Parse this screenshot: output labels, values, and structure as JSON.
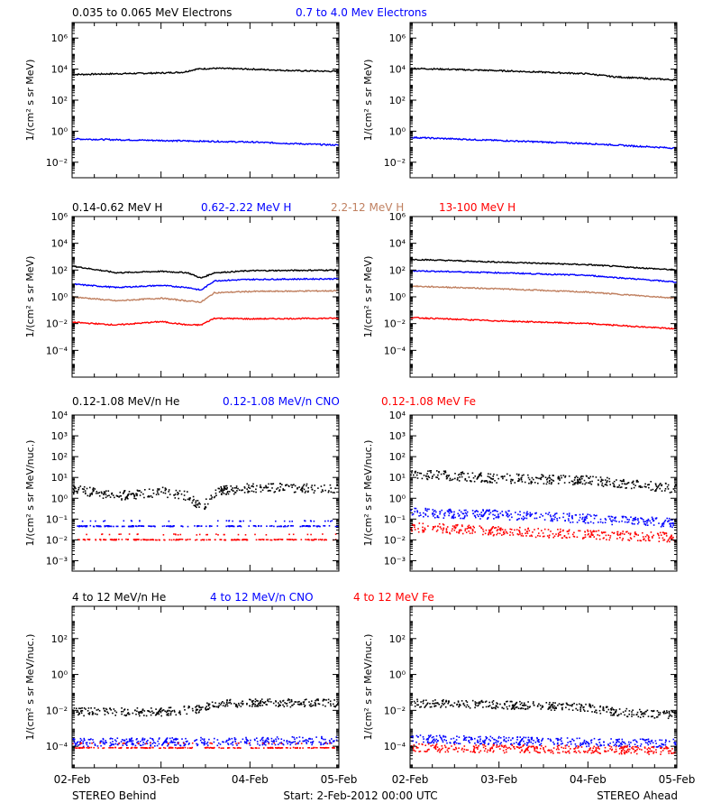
{
  "footer": {
    "left": "STEREO Behind",
    "center": "Start:  2-Feb-2012 00:00 UTC",
    "right": "STEREO Ahead"
  },
  "x_ticks": [
    "02-Feb",
    "03-Feb",
    "04-Feb",
    "05-Feb"
  ],
  "rows": [
    {
      "ylabel": "1/(cm² s sr MeV)",
      "legend": [
        {
          "text": "0.035 to 0.065 MeV Electrons",
          "color": "#000000"
        },
        {
          "text": "0.7 to 4.0 Mev Electrons",
          "color": "#0000ff"
        }
      ],
      "ylog": [
        -3,
        7
      ],
      "tick_exps": [
        -2,
        0,
        2,
        4,
        6
      ]
    },
    {
      "ylabel": "1/(cm² s sr MeV)",
      "legend": [
        {
          "text": "0.14-0.62 MeV H",
          "color": "#000000"
        },
        {
          "text": "0.62-2.22 MeV H",
          "color": "#0000ff"
        },
        {
          "text": "2.2-12 MeV H",
          "color": "#c08060"
        },
        {
          "text": "13-100 MeV H",
          "color": "#ff0000"
        }
      ],
      "ylog": [
        -6,
        6
      ],
      "tick_exps": [
        -4,
        -2,
        0,
        2,
        4,
        6
      ]
    },
    {
      "ylabel": "1/(cm² s sr MeV/nuc.)",
      "legend": [
        {
          "text": "0.12-1.08 MeV/n He",
          "color": "#000000"
        },
        {
          "text": "0.12-1.08 MeV/n CNO",
          "color": "#0000ff"
        },
        {
          "text": "0.12-1.08 MeV Fe",
          "color": "#ff0000"
        }
      ],
      "ylog": [
        -3.5,
        4
      ],
      "tick_exps": [
        -3,
        -2,
        -1,
        0,
        1,
        2,
        3,
        4
      ]
    },
    {
      "ylabel": "1/(cm² s sr MeV/nuc.)",
      "legend": [
        {
          "text": "4 to 12 MeV/n He",
          "color": "#000000"
        },
        {
          "text": "4 to 12 MeV/n CNO",
          "color": "#0000ff"
        },
        {
          "text": "4 to 12 MeV Fe",
          "color": "#ff0000"
        }
      ],
      "ylog": [
        -5.2,
        3.8
      ],
      "tick_exps": [
        -4,
        -2,
        0,
        2
      ]
    }
  ],
  "chart_data": [
    {
      "type": "line",
      "panel": "Behind electrons",
      "ylog": [
        -3,
        7
      ],
      "yscale": "log",
      "series": [
        {
          "name": "0.035 to 0.065 MeV Electrons",
          "color": "#000000",
          "x": [
            0,
            0.5,
            1.0,
            1.25,
            1.4,
            1.6,
            2,
            2.5,
            3
          ],
          "y": [
            3.65,
            3.7,
            3.75,
            3.8,
            4.0,
            4.05,
            4.0,
            3.9,
            3.85
          ]
        },
        {
          "name": "0.7 to 4.0 Mev Electrons",
          "color": "#0000ff",
          "x": [
            0,
            1,
            2,
            3
          ],
          "y": [
            -0.5,
            -0.6,
            -0.7,
            -0.9
          ]
        }
      ]
    },
    {
      "type": "line",
      "panel": "Ahead electrons",
      "ylog": [
        -3,
        7
      ],
      "yscale": "log",
      "series": [
        {
          "name": "0.035 to 0.065 MeV Electrons",
          "color": "#000000",
          "x": [
            0,
            1,
            2,
            2.3,
            3
          ],
          "y": [
            4.05,
            3.9,
            3.7,
            3.5,
            3.3
          ]
        },
        {
          "name": "0.7 to 4.0 Mev Electrons",
          "color": "#0000ff",
          "x": [
            0,
            1,
            2,
            3
          ],
          "y": [
            -0.4,
            -0.6,
            -0.8,
            -1.1
          ]
        }
      ]
    },
    {
      "type": "line",
      "panel": "Behind H",
      "ylog": [
        -6,
        6
      ],
      "yscale": "log",
      "series": [
        {
          "name": "0.14-0.62 MeV H",
          "color": "#000000",
          "x": [
            0,
            0.5,
            1.0,
            1.3,
            1.45,
            1.6,
            2,
            3
          ],
          "y": [
            2.3,
            1.8,
            1.9,
            1.8,
            1.4,
            1.8,
            1.95,
            2.0
          ]
        },
        {
          "name": "0.62-2.22 MeV H",
          "color": "#0000ff",
          "x": [
            0,
            0.5,
            1.0,
            1.3,
            1.45,
            1.6,
            2,
            3
          ],
          "y": [
            0.95,
            0.7,
            0.85,
            0.7,
            0.5,
            1.2,
            1.3,
            1.35
          ]
        },
        {
          "name": "2.2-12 MeV H",
          "color": "#c08060",
          "x": [
            0,
            0.5,
            1.0,
            1.3,
            1.45,
            1.6,
            2,
            3
          ],
          "y": [
            0.0,
            -0.3,
            -0.1,
            -0.3,
            -0.4,
            0.3,
            0.4,
            0.45
          ]
        },
        {
          "name": "13-100 MeV H",
          "color": "#ff0000",
          "x": [
            0,
            0.5,
            1.0,
            1.3,
            1.45,
            1.6,
            2,
            3
          ],
          "y": [
            -1.9,
            -2.1,
            -1.85,
            -2.1,
            -2.1,
            -1.6,
            -1.65,
            -1.6
          ]
        }
      ]
    },
    {
      "type": "line",
      "panel": "Ahead H",
      "ylog": [
        -6,
        6
      ],
      "yscale": "log",
      "series": [
        {
          "name": "0.14-0.62 MeV H",
          "color": "#000000",
          "x": [
            0,
            1,
            2,
            3
          ],
          "y": [
            2.8,
            2.6,
            2.4,
            2.0
          ]
        },
        {
          "name": "0.62-2.22 MeV H",
          "color": "#0000ff",
          "x": [
            0,
            1,
            2,
            3
          ],
          "y": [
            1.95,
            1.8,
            1.6,
            1.1
          ]
        },
        {
          "name": "2.2-12 MeV H",
          "color": "#c08060",
          "x": [
            0,
            1,
            2,
            3
          ],
          "y": [
            0.8,
            0.6,
            0.35,
            -0.1
          ]
        },
        {
          "name": "13-100 MeV H",
          "color": "#ff0000",
          "x": [
            0,
            1,
            2,
            3
          ],
          "y": [
            -1.55,
            -1.8,
            -2.0,
            -2.4
          ]
        }
      ]
    },
    {
      "type": "scatter",
      "panel": "Behind low-energy ions",
      "ylog": [
        -3.5,
        4
      ],
      "yscale": "log",
      "series": [
        {
          "name": "0.12-1.08 MeV/n He",
          "color": "#000000",
          "x": [
            0,
            0.5,
            1.0,
            1.3,
            1.45,
            1.6,
            2,
            3
          ],
          "y": [
            0.4,
            0.1,
            0.3,
            0.1,
            -0.5,
            0.3,
            0.5,
            0.45
          ]
        },
        {
          "name": "0.12-1.08 MeV/n CNO",
          "color": "#0000ff",
          "x": [
            0,
            3
          ],
          "y": [
            -1.35,
            -1.35
          ]
        },
        {
          "name": "0.12-1.08 MeV Fe",
          "color": "#ff0000",
          "x": [
            0,
            3
          ],
          "y": [
            -2.0,
            -2.0
          ]
        }
      ]
    },
    {
      "type": "scatter",
      "panel": "Ahead low-energy ions",
      "ylog": [
        -3.5,
        4
      ],
      "yscale": "log",
      "series": [
        {
          "name": "0.12-1.08 MeV/n He",
          "color": "#000000",
          "x": [
            0,
            1,
            2,
            3
          ],
          "y": [
            1.15,
            0.95,
            0.85,
            0.45
          ]
        },
        {
          "name": "0.12-1.08 MeV/n CNO",
          "color": "#0000ff",
          "x": [
            0,
            1,
            2,
            3
          ],
          "y": [
            -0.7,
            -0.8,
            -1.0,
            -1.2
          ]
        },
        {
          "name": "0.12-1.08 MeV Fe",
          "color": "#ff0000",
          "x": [
            0,
            1,
            2,
            3
          ],
          "y": [
            -1.4,
            -1.6,
            -1.75,
            -1.9
          ]
        }
      ]
    },
    {
      "type": "scatter",
      "panel": "Behind high-energy ions",
      "ylog": [
        -5.2,
        3.8
      ],
      "yscale": "log",
      "series": [
        {
          "name": "4 to 12 MeV/n He",
          "color": "#000000",
          "x": [
            0,
            1,
            1.25,
            1.45,
            1.6,
            2,
            3
          ],
          "y": [
            -2.1,
            -2.1,
            -2.0,
            -1.95,
            -1.65,
            -1.6,
            -1.6
          ]
        },
        {
          "name": "4 to 12 MeV/n CNO",
          "color": "#0000ff",
          "x": [
            0,
            3
          ],
          "y": [
            -3.8,
            -3.7
          ]
        },
        {
          "name": "4 to 12 MeV Fe",
          "color": "#ff0000",
          "x": [
            0,
            3
          ],
          "y": [
            -4.1,
            -4.1
          ]
        }
      ]
    },
    {
      "type": "scatter",
      "panel": "Ahead high-energy ions",
      "ylog": [
        -5.2,
        3.8
      ],
      "yscale": "log",
      "series": [
        {
          "name": "4 to 12 MeV/n He",
          "color": "#000000",
          "x": [
            0,
            1,
            2,
            2.3,
            3
          ],
          "y": [
            -1.6,
            -1.7,
            -1.85,
            -2.1,
            -2.3
          ]
        },
        {
          "name": "4 to 12 MeV/n CNO",
          "color": "#0000ff",
          "x": [
            0,
            1,
            2,
            3
          ],
          "y": [
            -3.6,
            -3.7,
            -3.8,
            -3.85
          ]
        },
        {
          "name": "4 to 12 MeV Fe",
          "color": "#ff0000",
          "x": [
            0,
            1,
            2,
            3
          ],
          "y": [
            -4.1,
            -4.15,
            -4.2,
            -4.25
          ]
        }
      ]
    }
  ]
}
